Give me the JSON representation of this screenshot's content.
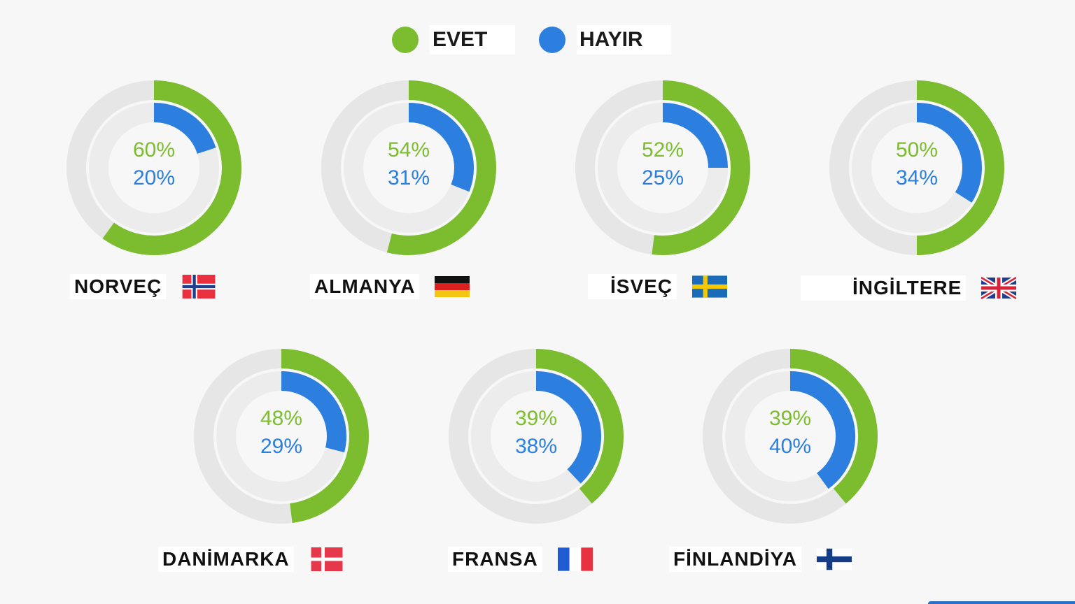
{
  "colors": {
    "yes": "#7cbd2f",
    "no": "#2c7fde",
    "track_outer": "#e6e6e6",
    "track_inner": "#ececec",
    "background": "#f7f7f7"
  },
  "legend": {
    "yes_label": "EVET",
    "no_label": "HAYIR"
  },
  "chart_data": {
    "type": "donut",
    "title": "",
    "series": [
      {
        "name": "EVET",
        "values": [
          60,
          54,
          52,
          50,
          48,
          39,
          39
        ]
      },
      {
        "name": "HAYIR",
        "values": [
          20,
          31,
          25,
          34,
          29,
          38,
          40
        ]
      }
    ],
    "categories": [
      "NORVEÇ",
      "ALMANYA",
      "İSVEÇ",
      "İNGİLTERE",
      "DANİMARKA",
      "FRANSA",
      "FİNLANDİYA"
    ],
    "countries": [
      {
        "name": "NORVEÇ",
        "flag": "norway-flag",
        "yes": 60,
        "no": 20,
        "yes_label": "60%",
        "no_label": "20%"
      },
      {
        "name": "ALMANYA",
        "flag": "germany-flag",
        "yes": 54,
        "no": 31,
        "yes_label": "54%",
        "no_label": "31%"
      },
      {
        "name": "İSVEÇ",
        "flag": "sweden-flag",
        "yes": 52,
        "no": 25,
        "yes_label": "52%",
        "no_label": "25%"
      },
      {
        "name": "İNGİLTERE",
        "flag": "uk-flag",
        "yes": 50,
        "no": 34,
        "yes_label": "50%",
        "no_label": "34%"
      },
      {
        "name": "DANİMARKA",
        "flag": "denmark-flag",
        "yes": 48,
        "no": 29,
        "yes_label": "48%",
        "no_label": "29%"
      },
      {
        "name": "FRANSA",
        "flag": "france-flag",
        "yes": 39,
        "no": 38,
        "yes_label": "39%",
        "no_label": "38%"
      },
      {
        "name": "FİNLANDİYA",
        "flag": "finland-flag",
        "yes": 39,
        "no": 40,
        "yes_label": "39%",
        "no_label": "40%"
      }
    ]
  }
}
